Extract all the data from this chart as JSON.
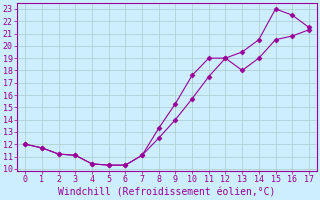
{
  "line1_x": [
    0,
    1,
    2,
    3,
    4,
    5,
    6,
    7,
    8,
    9,
    10,
    11,
    12,
    13,
    14,
    15,
    16,
    17
  ],
  "line1_y": [
    12,
    11.7,
    11.2,
    11.1,
    10.4,
    10.3,
    10.3,
    11.1,
    13.3,
    15.3,
    17.6,
    19.0,
    19.0,
    18.0,
    19.0,
    20.5,
    20.8,
    21.3
  ],
  "line2_x": [
    0,
    1,
    2,
    3,
    4,
    5,
    6,
    7,
    8,
    9,
    10,
    11,
    12,
    13,
    14,
    15,
    16,
    17
  ],
  "line2_y": [
    12,
    11.7,
    11.2,
    11.1,
    10.4,
    10.3,
    10.3,
    11.1,
    12.5,
    14.0,
    15.7,
    17.5,
    19.0,
    19.5,
    20.5,
    23.0,
    22.5,
    21.5
  ],
  "line_color": "#990099",
  "marker": "D",
  "marker_size": 2.5,
  "xlabel": "Windchill (Refroidissement éolien,°C)",
  "xlim": [
    -0.5,
    17.5
  ],
  "ylim": [
    9.8,
    23.5
  ],
  "yticks": [
    10,
    11,
    12,
    13,
    14,
    15,
    16,
    17,
    18,
    19,
    20,
    21,
    22,
    23
  ],
  "xticks": [
    0,
    1,
    2,
    3,
    4,
    5,
    6,
    7,
    8,
    9,
    10,
    11,
    12,
    13,
    14,
    15,
    16,
    17
  ],
  "bg_color": "#cceeff",
  "grid_color": "#aacccc",
  "tick_color": "#990099",
  "label_color": "#990099",
  "font_size": 6,
  "xlabel_font_size": 7
}
